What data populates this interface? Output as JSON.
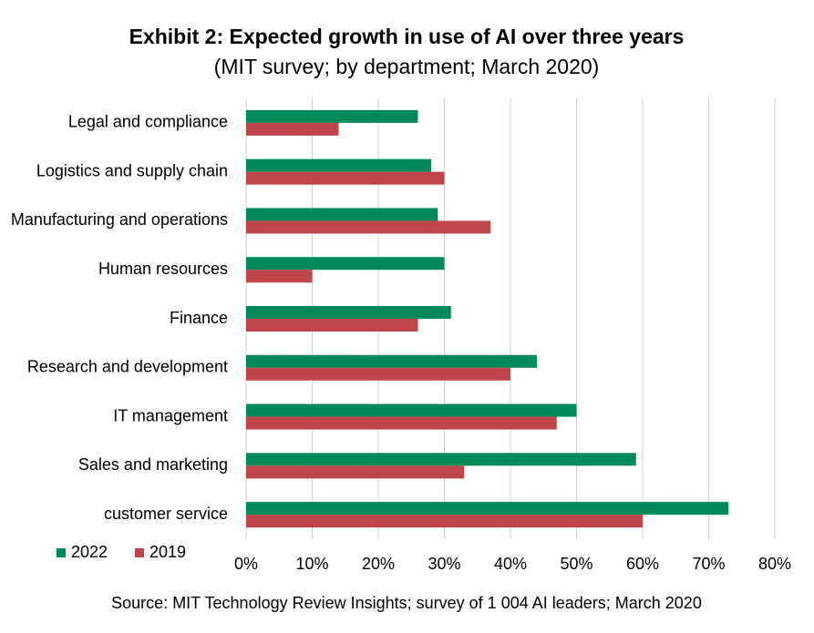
{
  "chart_data": {
    "type": "hbar",
    "title": "Exhibit 2: Expected growth in use of AI over three years",
    "subtitle": "(MIT survey; by department; March 2020)",
    "source": "Source:  MIT Technology Review  Insights; survey of 1 004 AI leaders;  March 2020",
    "categories": [
      "Legal and compliance",
      "Logistics and supply chain",
      "Manufacturing and operations",
      "Human resources",
      "Finance",
      "Research and development",
      "IT management",
      "Sales and marketing",
      "customer service"
    ],
    "series": [
      {
        "name": "2022",
        "color": "#008a5a",
        "values": [
          26,
          28,
          29,
          30,
          31,
          44,
          50,
          59,
          73
        ]
      },
      {
        "name": "2019",
        "color": "#c0454a",
        "values": [
          14,
          30,
          37,
          10,
          26,
          40,
          47,
          33,
          60
        ]
      }
    ],
    "xlim": [
      0,
      80
    ],
    "xticks": [
      {
        "value": 0,
        "label": "0%"
      },
      {
        "value": 10,
        "label": "10%"
      },
      {
        "value": 20,
        "label": "20%"
      },
      {
        "value": 30,
        "label": "30%"
      },
      {
        "value": 40,
        "label": "40%"
      },
      {
        "value": 50,
        "label": "50%"
      },
      {
        "value": 60,
        "label": "60%"
      },
      {
        "value": 70,
        "label": "70%"
      },
      {
        "value": 80,
        "label": "80%"
      }
    ],
    "grid": true,
    "legend": "bottom-left"
  }
}
